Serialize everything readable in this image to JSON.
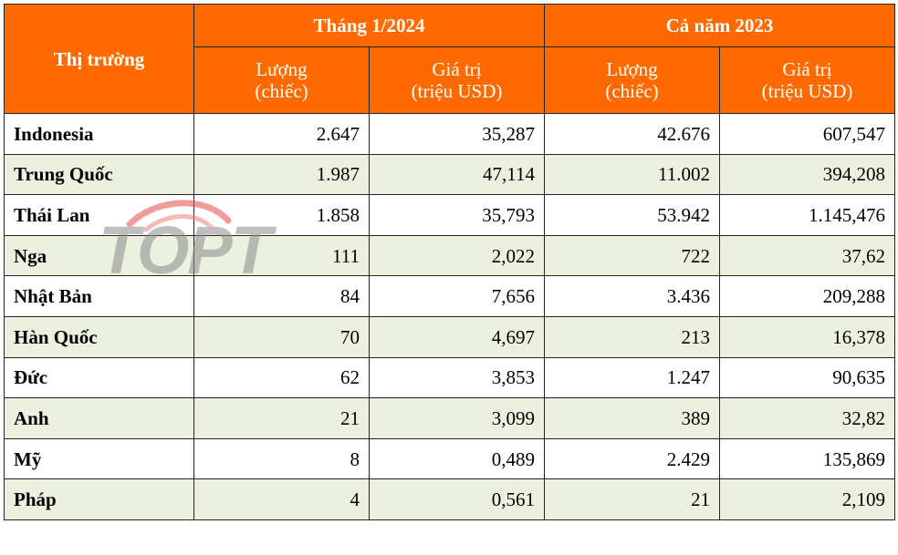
{
  "table": {
    "corner_header": "Thị trường",
    "group_headers": [
      "Tháng 1/2024",
      "Cả năm 2023"
    ],
    "sub_headers": [
      [
        "Lượng",
        "(chiếc)"
      ],
      [
        "Giá trị",
        "(triệu USD)"
      ],
      [
        "Lượng",
        "(chiếc)"
      ],
      [
        "Giá trị",
        "(triệu USD)"
      ]
    ],
    "rows": [
      {
        "market": "Indonesia",
        "qty_2024_01": "2.647",
        "val_2024_01": "35,287",
        "qty_2023": "42.676",
        "val_2023": "607,547"
      },
      {
        "market": "Trung Quốc",
        "qty_2024_01": "1.987",
        "val_2024_01": "47,114",
        "qty_2023": "11.002",
        "val_2023": "394,208"
      },
      {
        "market": "Thái Lan",
        "qty_2024_01": "1.858",
        "val_2024_01": "35,793",
        "qty_2023": "53.942",
        "val_2023": "1.145,476"
      },
      {
        "market": "Nga",
        "qty_2024_01": "111",
        "val_2024_01": "2,022",
        "qty_2023": "722",
        "val_2023": "37,62"
      },
      {
        "market": "Nhật Bản",
        "qty_2024_01": "84",
        "val_2024_01": "7,656",
        "qty_2023": "3.436",
        "val_2023": "209,288"
      },
      {
        "market": "Hàn Quốc",
        "qty_2024_01": "70",
        "val_2024_01": "4,697",
        "qty_2023": "213",
        "val_2023": "16,378"
      },
      {
        "market": "Đức",
        "qty_2024_01": "62",
        "val_2024_01": "3,853",
        "qty_2023": "1.247",
        "val_2023": "90,635"
      },
      {
        "market": "Anh",
        "qty_2024_01": "21",
        "val_2024_01": "3,099",
        "qty_2023": "389",
        "val_2023": "32,82"
      },
      {
        "market": "Mỹ",
        "qty_2024_01": "8",
        "val_2024_01": "0,489",
        "qty_2023": "2.429",
        "val_2023": "135,869"
      },
      {
        "market": "Pháp",
        "qty_2024_01": "4",
        "val_2024_01": "0,561",
        "qty_2023": "21",
        "val_2023": "2,109"
      }
    ]
  },
  "watermark": {
    "text": "TOPT",
    "icon": "topt-logo-watermark"
  },
  "colors": {
    "header_bg": "#ff6a00",
    "header_text": "#ffffff",
    "alt_row_bg": "#ebf1de",
    "border": "#222222"
  }
}
